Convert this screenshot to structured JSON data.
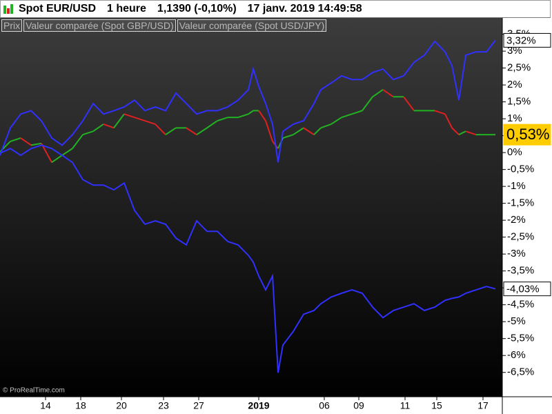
{
  "header": {
    "instrument": "Spot EUR/USD",
    "interval": "1 heure",
    "price": "1,1390 (-0,10%)",
    "datetime": "17 janv. 2019 14:49:58"
  },
  "watermark": "© ProRealTime.com",
  "chart_data": {
    "type": "line",
    "x": [
      0,
      3,
      6,
      9,
      12,
      15,
      18,
      21,
      24,
      27,
      30,
      33,
      36,
      39,
      42,
      45,
      48,
      51,
      54,
      57,
      60,
      63,
      66,
      69,
      72,
      73.4,
      75,
      77,
      79,
      80.6,
      82,
      85,
      88,
      91,
      93,
      96,
      99,
      102,
      105,
      108,
      111,
      114,
      117,
      120,
      123,
      126,
      129,
      131,
      133,
      135,
      138,
      141,
      143.6
    ],
    "xlim": [
      0,
      145.4
    ],
    "xticks": [
      {
        "value": 13.2,
        "label": "14"
      },
      {
        "value": 23.4,
        "label": "18"
      },
      {
        "value": 35.2,
        "label": "20"
      },
      {
        "value": 47.4,
        "label": "23"
      },
      {
        "value": 57.6,
        "label": "27"
      },
      {
        "value": 75,
        "label": "2019"
      },
      {
        "value": 94,
        "label": "06"
      },
      {
        "value": 104,
        "label": "09"
      },
      {
        "value": 117.4,
        "label": "11"
      },
      {
        "value": 126.6,
        "label": "15"
      },
      {
        "value": 140,
        "label": "17"
      }
    ],
    "ylim": [
      -7.22,
      3.9
    ],
    "yticks": [
      {
        "value": 3.5,
        "label": "3,5%"
      },
      {
        "value": 3,
        "label": "3%"
      },
      {
        "value": 2.5,
        "label": "2,5%"
      },
      {
        "value": 2,
        "label": "2%"
      },
      {
        "value": 1.5,
        "label": "1,5%"
      },
      {
        "value": 1,
        "label": "1%"
      },
      {
        "value": 0.5,
        "label": "0,5%"
      },
      {
        "value": 0,
        "label": "0%"
      },
      {
        "value": -0.5,
        "label": "-0,5%"
      },
      {
        "value": -1,
        "label": "-1%"
      },
      {
        "value": -1.5,
        "label": "-1,5%"
      },
      {
        "value": -2,
        "label": "-2%"
      },
      {
        "value": -2.5,
        "label": "-2,5%"
      },
      {
        "value": -3,
        "label": "-3%"
      },
      {
        "value": -3.5,
        "label": "-3,5%"
      },
      {
        "value": -4,
        "label": "-4%"
      },
      {
        "value": -4.5,
        "label": "-4,5%"
      },
      {
        "value": -5,
        "label": "-5%"
      },
      {
        "value": -5.5,
        "label": "-5,5%"
      },
      {
        "value": -6,
        "label": "-6%"
      },
      {
        "value": -6.5,
        "label": "-6,5%"
      }
    ],
    "series": [
      {
        "name": "Prix",
        "up_color": "#22b322",
        "down_color": "#e02020",
        "values": [
          0.02,
          0.33,
          0.43,
          0.22,
          0.27,
          -0.29,
          -0.08,
          0.12,
          0.53,
          0.63,
          0.84,
          0.73,
          1.14,
          1.04,
          0.94,
          0.84,
          0.53,
          0.73,
          0.73,
          0.53,
          0.73,
          0.94,
          1.04,
          1.04,
          1.14,
          1.24,
          1.24,
          0.94,
          0.33,
          0.12,
          0.43,
          0.53,
          0.73,
          0.53,
          0.73,
          0.84,
          1.04,
          1.14,
          1.24,
          1.65,
          1.86,
          1.65,
          1.65,
          1.24,
          1.24,
          1.24,
          1.14,
          0.73,
          0.53,
          0.63,
          0.53,
          0.53,
          0.53
        ],
        "end_label": {
          "value": 0.53,
          "label": "0,53%"
        },
        "end_style": "highlight"
      },
      {
        "name": "Valeur comparée (Spot GBP/USD)",
        "color": "#3030ff",
        "values": [
          -0.08,
          0.73,
          1.14,
          1.24,
          0.94,
          0.43,
          0.22,
          0.53,
          0.94,
          1.45,
          1.14,
          1.24,
          1.35,
          1.55,
          1.24,
          1.35,
          1.24,
          1.76,
          1.45,
          1.14,
          1.24,
          1.24,
          1.35,
          1.55,
          1.86,
          2.47,
          1.96,
          1.45,
          0.84,
          -0.29,
          0.63,
          0.84,
          0.94,
          1.45,
          1.86,
          2.06,
          2.27,
          2.16,
          2.16,
          2.37,
          2.47,
          2.16,
          2.27,
          2.67,
          2.88,
          3.29,
          2.98,
          2.57,
          1.55,
          2.88,
          2.98,
          2.98,
          3.32
        ],
        "end_label": {
          "value": 3.32,
          "label": "3,32%"
        },
        "end_style": "box"
      },
      {
        "name": "Valeur comparée (Spot USD/JPY)",
        "color": "#3030ff",
        "values": [
          -0.02,
          0.12,
          -0.08,
          0.12,
          0.22,
          0.12,
          -0.08,
          -0.29,
          -0.8,
          -0.96,
          -0.96,
          -1.1,
          -0.9,
          -1.71,
          -2.12,
          -2.02,
          -2.12,
          -2.53,
          -2.73,
          -2.02,
          -2.33,
          -2.33,
          -2.63,
          -2.73,
          -3.04,
          -3.24,
          -3.65,
          -4.06,
          -3.65,
          -6.51,
          -5.69,
          -5.29,
          -4.78,
          -4.67,
          -4.47,
          -4.27,
          -4.16,
          -4.06,
          -4.16,
          -4.57,
          -4.88,
          -4.67,
          -4.57,
          -4.47,
          -4.67,
          -4.57,
          -4.37,
          -4.31,
          -4.27,
          -4.16,
          -4.06,
          -3.96,
          -4.03
        ],
        "end_label": {
          "value": -4.03,
          "label": "-4,03%"
        },
        "end_style": "box"
      }
    ]
  }
}
